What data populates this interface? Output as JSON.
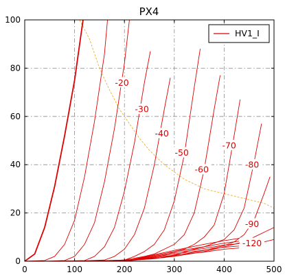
{
  "chart_data": {
    "type": "line",
    "title": "PX4",
    "xlabel": "",
    "ylabel": "",
    "xlim": [
      0,
      500
    ],
    "ylim": [
      0,
      100
    ],
    "x_ticks": [
      0,
      100,
      200,
      300,
      400,
      500
    ],
    "y_ticks": [
      0,
      20,
      40,
      60,
      80,
      100
    ],
    "grid": true,
    "legend": {
      "position": "top-right",
      "entries": [
        "HV1_I"
      ]
    },
    "series_color": "#dd0000",
    "power_limit_color": "#f0b020",
    "series": [
      {
        "name": "HV1_I",
        "grid_voltage_label": "",
        "x": [
          0,
          20,
          40,
          60,
          80,
          100,
          117
        ],
        "y": [
          0,
          3,
          14,
          31,
          52,
          75,
          100
        ]
      },
      {
        "grid_voltage_label": "-20",
        "x": [
          0,
          40,
          60,
          80,
          100,
          120,
          140,
          160,
          166
        ],
        "y": [
          0,
          0.3,
          2,
          7,
          17,
          35,
          58,
          86,
          100
        ]
      },
      {
        "grid_voltage_label": "-30",
        "x": [
          40,
          80,
          100,
          120,
          140,
          160,
          180,
          200,
          210
        ],
        "y": [
          0,
          0.3,
          2,
          7,
          16,
          33,
          55,
          82,
          100
        ]
      },
      {
        "grid_voltage_label": "-40",
        "x": [
          60,
          120,
          140,
          160,
          180,
          200,
          220,
          240,
          252
        ],
        "y": [
          0,
          0.3,
          2,
          6,
          14,
          29,
          49,
          74,
          87
        ]
      },
      {
        "grid_voltage_label": "-50",
        "x": [
          100,
          160,
          180,
          200,
          220,
          240,
          260,
          280,
          292
        ],
        "y": [
          0,
          0.5,
          2,
          5,
          11,
          22,
          40,
          63,
          76
        ]
      },
      {
        "grid_voltage_label": "-60",
        "x": [
          120,
          200,
          220,
          240,
          260,
          280,
          300,
          320,
          340,
          352
        ],
        "y": [
          0,
          0.5,
          2,
          4,
          7,
          13,
          25,
          44,
          72,
          88
        ]
      },
      {
        "grid_voltage_label": "-70",
        "x": [
          140,
          200,
          240,
          260,
          280,
          300,
          320,
          340,
          360,
          380,
          392
        ],
        "y": [
          0,
          0.5,
          2,
          3,
          5,
          7,
          11,
          20,
          38,
          63,
          77
        ]
      },
      {
        "grid_voltage_label": "-80",
        "x": [
          160,
          240,
          280,
          300,
          320,
          340,
          360,
          380,
          400,
          420,
          432
        ],
        "y": [
          0,
          1,
          2.5,
          4,
          5,
          7,
          10,
          15,
          28,
          52,
          67
        ]
      },
      {
        "grid_voltage_label": "",
        "x": [
          180,
          260,
          300,
          340,
          360,
          380,
          400,
          420,
          440,
          460,
          475
        ],
        "y": [
          0,
          1,
          2.5,
          5,
          6,
          7.5,
          9,
          13,
          22,
          41,
          57
        ]
      },
      {
        "grid_voltage_label": "-90",
        "x": [
          180,
          280,
          320,
          360,
          380,
          400,
          420,
          440,
          460,
          480,
          492
        ],
        "y": [
          0,
          1.5,
          3,
          4.5,
          5.5,
          6.5,
          8,
          11,
          17,
          28,
          35
        ]
      },
      {
        "grid_voltage_label": "",
        "x": [
          200,
          300,
          360,
          400,
          420,
          440,
          460,
          480,
          500
        ],
        "y": [
          0,
          2,
          4,
          6,
          7,
          8,
          10,
          12,
          14
        ]
      },
      {
        "grid_voltage_label": "-120",
        "x": [
          200,
          300,
          360,
          400,
          430
        ],
        "y": [
          0,
          4.5,
          7,
          8.5,
          9.5
        ]
      },
      {
        "grid_voltage_label": "",
        "x": [
          200,
          300,
          360,
          400,
          430
        ],
        "y": [
          0,
          4,
          6,
          7.5,
          8.3
        ]
      },
      {
        "grid_voltage_label": "",
        "x": [
          200,
          300,
          360,
          400,
          430
        ],
        "y": [
          0,
          3.5,
          5.3,
          6.7,
          7.3
        ]
      },
      {
        "grid_voltage_label": "",
        "x": [
          200,
          300,
          360,
          400,
          430
        ],
        "y": [
          0,
          3,
          4.6,
          5.8,
          6.3
        ]
      },
      {
        "grid_voltage_label": "",
        "x": [
          200,
          300,
          360,
          400,
          430
        ],
        "y": [
          0,
          2.5,
          3.8,
          5,
          5.5
        ]
      },
      {
        "grid_voltage_label": "",
        "x": [
          480,
          500
        ],
        "y": [
          8,
          9
        ]
      }
    ],
    "power_limit_curve": {
      "x": [
        110,
        130,
        150,
        170,
        190,
        210,
        230,
        250,
        280,
        320,
        360,
        400,
        440,
        480,
        500
      ],
      "y": [
        100,
        92,
        80,
        71,
        63,
        57,
        51,
        46,
        40,
        34,
        30,
        28,
        26,
        24,
        22
      ]
    },
    "curve_labels": [
      {
        "text": "-20",
        "x": 195,
        "y": 74
      },
      {
        "text": "-30",
        "x": 235,
        "y": 63
      },
      {
        "text": "-40",
        "x": 275,
        "y": 53
      },
      {
        "text": "-50",
        "x": 315,
        "y": 45
      },
      {
        "text": "-60",
        "x": 355,
        "y": 38
      },
      {
        "text": "-70",
        "x": 410,
        "y": 48
      },
      {
        "text": "-80",
        "x": 456,
        "y": 40
      },
      {
        "text": "-90",
        "x": 456,
        "y": 15.5
      },
      {
        "text": "-120",
        "x": 456,
        "y": 7.5
      }
    ]
  }
}
